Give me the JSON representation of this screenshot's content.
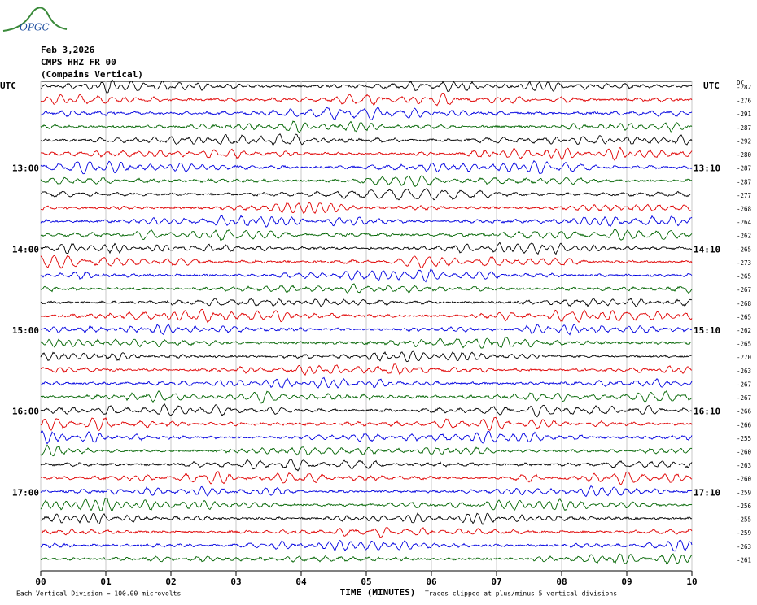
{
  "logo": "OPGC",
  "chart_data": {
    "type": "helicorder",
    "title": "Feb 3,2026",
    "subtitle": "CMPS HHZ FR 00",
    "location": "(Compains Vertical)",
    "left_axis_title": "UTC",
    "right_axis_title": "UTC",
    "dc_title": "DC",
    "xlabel": "TIME (MINUTES)",
    "xlim": [
      0,
      10
    ],
    "xticks": [
      {
        "value": 0,
        "label": "00"
      },
      {
        "value": 1,
        "label": "01"
      },
      {
        "value": 2,
        "label": "02"
      },
      {
        "value": 3,
        "label": "03"
      },
      {
        "value": 4,
        "label": "04"
      },
      {
        "value": 5,
        "label": "05"
      },
      {
        "value": 6,
        "label": "06"
      },
      {
        "value": 7,
        "label": "07"
      },
      {
        "value": 8,
        "label": "08"
      },
      {
        "value": 9,
        "label": "09"
      },
      10
    ],
    "grid": true,
    "trace_colors": [
      "#000000",
      "#e00000",
      "#0000e0",
      "#006400"
    ],
    "left_labels": [
      null,
      null,
      null,
      null,
      null,
      null,
      "13:00",
      null,
      null,
      null,
      null,
      null,
      "14:00",
      null,
      null,
      null,
      null,
      null,
      "15:00",
      null,
      null,
      null,
      null,
      null,
      "16:00",
      null,
      null,
      null,
      null,
      null,
      "17:00",
      null,
      null,
      null,
      null,
      null
    ],
    "right_labels": [
      null,
      null,
      null,
      null,
      null,
      null,
      "13:10",
      null,
      null,
      null,
      null,
      null,
      "14:10",
      null,
      null,
      null,
      null,
      null,
      "15:10",
      null,
      null,
      null,
      null,
      null,
      "16:10",
      null,
      null,
      null,
      null,
      null,
      "17:10",
      null,
      null,
      null,
      null,
      null
    ],
    "dc_offsets": [
      -282,
      -276,
      -291,
      -287,
      -292,
      -280,
      -287,
      -287,
      -277,
      -268,
      -264,
      -262,
      -265,
      -273,
      -265,
      -267,
      -268,
      -265,
      -262,
      -265,
      -270,
      -263,
      -267,
      -267,
      -266,
      -266,
      -255,
      -260,
      -263,
      -260,
      -259,
      -256,
      -255,
      -259,
      -263,
      -261
    ],
    "footer_left": "Each Vertical Division =  100.00 microvolts",
    "footer_right": "Traces clipped at plus/minus 5 vertical divisions"
  }
}
